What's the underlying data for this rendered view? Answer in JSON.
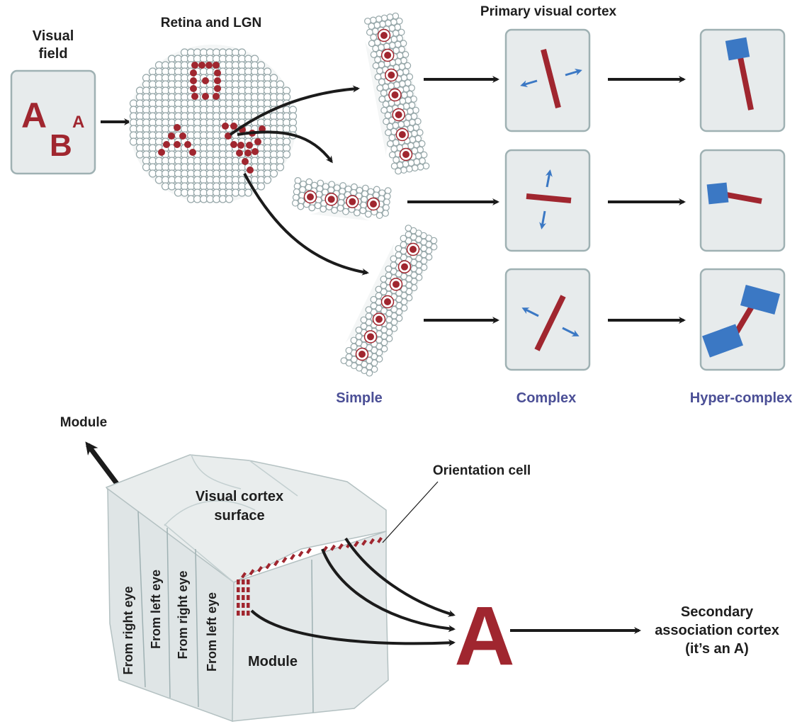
{
  "labels": {
    "visual_field_1": "Visual",
    "visual_field_2": "field",
    "retina": "Retina and LGN",
    "primary": "Primary visual cortex",
    "simple": "Simple",
    "complex": "Complex",
    "hyper": "Hyper-complex",
    "module_top": "Module",
    "orientation": "Orientation cell",
    "cortex_surface_1": "Visual cortex",
    "cortex_surface_2": "surface",
    "from_right_eye_1": "From right eye",
    "from_left_eye_1": "From left eye",
    "from_right_eye_2": "From right eye",
    "from_left_eye_2": "From left eye",
    "module_block": "Module",
    "big_letter": "A",
    "secondary_1": "Secondary",
    "secondary_2": "association cortex",
    "secondary_3": "(it’s an A)"
  },
  "visual_field_letters": [
    "A",
    "B",
    "A"
  ],
  "colors": {
    "red": "#a0262f",
    "blue_box": "#3b78c4",
    "category_label": "#4b4f96",
    "panel": "#e7ebec"
  }
}
